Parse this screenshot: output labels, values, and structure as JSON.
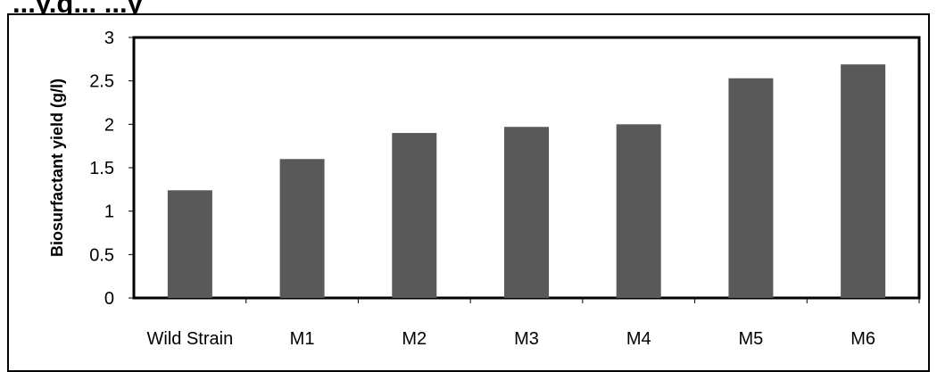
{
  "header": {
    "partial_title": "...y.g... ...y"
  },
  "chart_data": {
    "type": "bar",
    "title": "",
    "xlabel": "",
    "ylabel": "Biosurfactant yield (g/l)",
    "categories": [
      "Wild Strain",
      "M1",
      "M2",
      "M3",
      "M4",
      "M5",
      "M6"
    ],
    "values": [
      1.24,
      1.6,
      1.9,
      1.97,
      2.0,
      2.53,
      2.69
    ],
    "ylim": [
      0,
      3
    ],
    "yticks": [
      "0",
      "0.5",
      "1",
      "1.5",
      "2",
      "2.5",
      "3"
    ],
    "grid": false,
    "legend": "none",
    "bar_color": "#595959"
  }
}
